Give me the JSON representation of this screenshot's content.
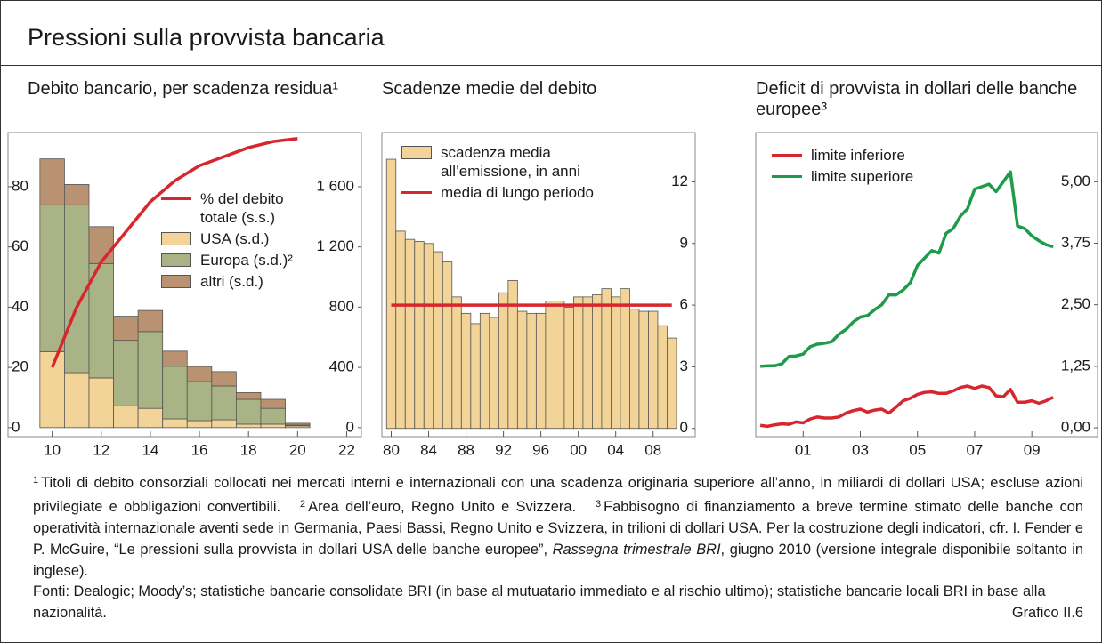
{
  "title": "Pressioni sulla provvista bancaria",
  "chart_data": [
    {
      "type": "bar",
      "title": "Debito bancario, per scadenza residua¹",
      "stacked": true,
      "x": [
        10,
        11,
        12,
        13,
        14,
        15,
        16,
        17,
        18,
        19,
        20
      ],
      "xlim": [
        8.2,
        22.6
      ],
      "xticks": [
        10,
        12,
        14,
        16,
        18,
        20,
        22
      ],
      "ylim": [
        -3,
        98
      ],
      "yticks": [
        0,
        20,
        40,
        60,
        80
      ],
      "y2lim": [
        -60,
        1960
      ],
      "y2ticks": [
        0,
        400,
        800,
        {
          "value": 1200,
          "label": "1 200"
        },
        {
          "value": 1600,
          "label": "1 600"
        }
      ],
      "series": [
        {
          "name": "% del debito totale (s.s.)",
          "type": "line",
          "color": "#d7262e",
          "values": [
            20,
            40,
            55,
            65,
            75,
            82,
            87,
            90,
            93,
            95,
            96
          ]
        },
        {
          "name": "USA (s.d.)",
          "color": "#f2d398",
          "axis": "y2",
          "values": [
            505,
            365,
            330,
            145,
            128,
            58,
            46,
            52,
            23,
            23,
            12
          ]
        },
        {
          "name": "Europa (s.d.)²",
          "color": "#a9b385",
          "axis": "y2",
          "values": [
            975,
            1115,
            760,
            435,
            510,
            350,
            260,
            225,
            165,
            105,
            5
          ]
        },
        {
          "name": "altri (s.d.)",
          "color": "#b99272",
          "axis": "y2",
          "values": [
            305,
            135,
            245,
            160,
            140,
            100,
            100,
            95,
            45,
            60,
            12
          ]
        }
      ]
    },
    {
      "type": "bar",
      "title": "Scadenze medie del debito",
      "x": [
        1980,
        1981,
        1982,
        1983,
        1984,
        1985,
        1986,
        1987,
        1988,
        1989,
        1990,
        1991,
        1992,
        1993,
        1994,
        1995,
        1996,
        1997,
        1998,
        1999,
        2000,
        2001,
        2002,
        2003,
        2004,
        2005,
        2006,
        2007,
        2008,
        2009,
        2010
      ],
      "xlim": [
        1979,
        2012.5
      ],
      "xticks": [
        {
          "value": 1980,
          "label": "80"
        },
        {
          "value": 1984,
          "label": "84"
        },
        {
          "value": 1988,
          "label": "88"
        },
        {
          "value": 1992,
          "label": "92"
        },
        {
          "value": 1996,
          "label": "96"
        },
        {
          "value": 2000,
          "label": "00"
        },
        {
          "value": 2004,
          "label": "04"
        },
        {
          "value": 2008,
          "label": "08"
        }
      ],
      "ylim": [
        -0.4,
        14.4
      ],
      "yticks": [
        0,
        3,
        6,
        9,
        12
      ],
      "y_axis_side": "right",
      "series": [
        {
          "name": "scadenza media all’emissione, in anni",
          "color": "#f2d398",
          "values": [
            13.1,
            9.6,
            9.2,
            9.1,
            9.0,
            8.6,
            8.1,
            6.4,
            5.6,
            5.1,
            5.6,
            5.4,
            6.6,
            7.2,
            5.7,
            5.6,
            5.6,
            6.2,
            6.2,
            5.9,
            6.4,
            6.4,
            6.5,
            6.8,
            6.4,
            6.8,
            5.8,
            5.7,
            5.7,
            5.0,
            4.4
          ]
        }
      ],
      "reference_line": {
        "name": "media di lungo periodo",
        "color": "#d7262e",
        "value": 6.0
      }
    },
    {
      "type": "line",
      "title": "Deficit di provvista in dollari delle banche europee³",
      "x": [
        2000,
        2000.25,
        2000.5,
        2000.75,
        2001,
        2001.25,
        2001.5,
        2001.75,
        2002,
        2002.25,
        2002.5,
        2002.75,
        2003,
        2003.25,
        2003.5,
        2003.75,
        2004,
        2004.25,
        2004.5,
        2004.75,
        2005,
        2005.25,
        2005.5,
        2005.75,
        2006,
        2006.25,
        2006.5,
        2006.75,
        2007,
        2007.25,
        2007.5,
        2007.75,
        2008,
        2008.25,
        2008.5,
        2008.75,
        2009,
        2009.25,
        2009.5,
        2009.75,
        2010,
        2010.25
      ],
      "xlim": [
        1999.84,
        2011.8
      ],
      "xticks": [
        {
          "value": 2001.5,
          "label": "01"
        },
        {
          "value": 2003.5,
          "label": "03"
        },
        {
          "value": 2005.5,
          "label": "05"
        },
        {
          "value": 2007.5,
          "label": "07"
        },
        {
          "value": 2009.5,
          "label": "09"
        }
      ],
      "ylim": [
        -0.18,
        6
      ],
      "y_axis_side": "right",
      "yticks": [
        {
          "value": 0,
          "label": "0,00"
        },
        {
          "value": 1.25,
          "label": "1,25"
        },
        {
          "value": 2.5,
          "label": "2,50"
        },
        {
          "value": 3.75,
          "label": "3,75"
        },
        {
          "value": 5,
          "label": "5,00"
        }
      ],
      "series": [
        {
          "name": "limite inferiore",
          "color": "#d7262e",
          "values": [
            0.05,
            0.03,
            0.06,
            0.08,
            0.07,
            0.12,
            0.1,
            0.18,
            0.22,
            0.2,
            0.2,
            0.22,
            0.3,
            0.35,
            0.38,
            0.32,
            0.36,
            0.38,
            0.3,
            0.42,
            0.55,
            0.6,
            0.68,
            0.72,
            0.73,
            0.7,
            0.7,
            0.75,
            0.82,
            0.85,
            0.8,
            0.85,
            0.82,
            0.65,
            0.63,
            0.78,
            0.52,
            0.52,
            0.55,
            0.5,
            0.55,
            0.62
          ]
        },
        {
          "name": "limite superiore",
          "color": "#1e9b4b",
          "values": [
            1.25,
            1.26,
            1.26,
            1.3,
            1.45,
            1.46,
            1.5,
            1.65,
            1.7,
            1.72,
            1.75,
            1.9,
            2.0,
            2.15,
            2.25,
            2.28,
            2.4,
            2.5,
            2.7,
            2.7,
            2.8,
            2.95,
            3.3,
            3.45,
            3.6,
            3.55,
            3.95,
            4.05,
            4.3,
            4.45,
            4.85,
            4.9,
            4.95,
            4.8,
            5.0,
            5.2,
            4.1,
            4.05,
            3.9,
            3.8,
            3.72,
            3.68
          ]
        }
      ]
    }
  ],
  "notes": [
    {
      "marker": "1",
      "text": "Titoli di debito consorziali collocati nei mercati interni e internazionali con una scadenza originaria superiore all’anno, in miliardi di dollari USA; escluse azioni privilegiate e obbligazioni convertibili."
    },
    {
      "marker": "2",
      "text": "Area dell’euro, Regno Unito e Svizzera."
    },
    {
      "marker": "3",
      "text": "Fabbisogno di finanziamento a breve termine stimato delle banche con operatività internazionale aventi sede in Germania, Paesi Bassi, Regno Unito e Svizzera, in trilioni di dollari USA. Per la costruzione degli indicatori, cfr. I. Fender e P. McGuire, “Le pressioni sulla provvista in dollari USA delle banche europee”, ",
      "italic": "Rassegna trimestrale BRI",
      "after": ", giugno 2010 (versione integrale disponibile soltanto in inglese)."
    }
  ],
  "sources": "Fonti: Dealogic; Moody’s; statistiche bancarie consolidate BRI (in base al mutuatario immediato e al rischio ultimo); statistiche bancarie locali BRI in base alla nazionalità.",
  "chart_id": "Grafico II.6"
}
